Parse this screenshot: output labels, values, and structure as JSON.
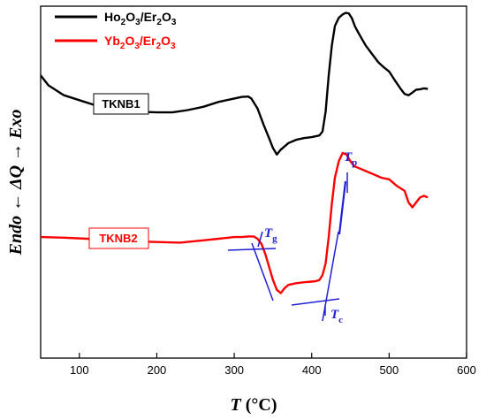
{
  "chart_data": {
    "type": "line",
    "xlabel_italic": "T",
    "xlabel_unit": "(°C)",
    "ylabel": "Endo ← ΔQ → Exo",
    "xlim": [
      50,
      600
    ],
    "xticks": [
      100,
      200,
      300,
      400,
      500,
      600
    ],
    "y_units": "arbitrary",
    "ylim": [
      0,
      100
    ],
    "grid": false,
    "legend_position": "top-left",
    "series": [
      {
        "name": "Ho2O3/Er2O3",
        "label_box": "TKNB1",
        "color": "#000000",
        "x": [
          50,
          60,
          80,
          100,
          120,
          150,
          180,
          200,
          220,
          240,
          260,
          280,
          300,
          310,
          318,
          322,
          330,
          338,
          345,
          350,
          355,
          360,
          370,
          380,
          390,
          400,
          410,
          414,
          418,
          422,
          426,
          430,
          435,
          440,
          444,
          448,
          452,
          456,
          460,
          465,
          470,
          478,
          486,
          492,
          500,
          508,
          515,
          520,
          525,
          530,
          535,
          540,
          545,
          550
        ],
        "y": [
          79,
          76,
          73,
          71.5,
          70,
          68.5,
          68,
          67.8,
          67.8,
          68.5,
          69.5,
          71,
          72,
          72.5,
          72.6,
          72,
          69,
          64,
          60,
          57,
          55,
          56.5,
          58.5,
          59.5,
          60,
          60.3,
          60.8,
          62,
          68,
          79,
          88,
          94,
          96.5,
          97.5,
          98,
          97.8,
          96.3,
          93.8,
          92.1,
          90,
          88,
          85.5,
          83,
          81.7,
          80.2,
          77.3,
          74.9,
          73.4,
          73,
          73.8,
          74.7,
          74.8,
          75.1,
          74.9
        ]
      },
      {
        "name": "Yb2O3/Er2O3",
        "label_box": "TKNB2",
        "color": "#ff0000",
        "x": [
          50,
          80,
          110,
          140,
          170,
          200,
          230,
          260,
          280,
          300,
          310,
          318,
          325,
          330,
          335,
          340,
          345,
          350,
          355,
          360,
          365,
          370,
          380,
          390,
          400,
          405,
          410,
          414,
          418,
          422,
          426,
          430,
          435,
          440,
          445,
          450,
          455,
          460,
          470,
          480,
          490,
          500,
          510,
          520,
          525,
          530,
          535,
          540,
          545,
          550
        ],
        "y": [
          30,
          29.8,
          29.5,
          29,
          28.7,
          28.5,
          28.3,
          29,
          29.5,
          30,
          30,
          30.2,
          30.2,
          29.5,
          28,
          25,
          21,
          17,
          14,
          13,
          14.5,
          15.5,
          16,
          16.3,
          16.5,
          16.6,
          17,
          18.5,
          22,
          30,
          40,
          48,
          53,
          55.5,
          55,
          53,
          51.5,
          51,
          50,
          49,
          48,
          47.5,
          45.5,
          44,
          40.5,
          39,
          40.5,
          42,
          42.5,
          42
        ]
      }
    ],
    "annotations": [
      {
        "symbol": "T",
        "subscript": "g",
        "x": 325
      },
      {
        "symbol": "T",
        "subscript": "c",
        "x": 415
      },
      {
        "symbol": "T",
        "subscript": "p",
        "x": 443
      }
    ]
  }
}
